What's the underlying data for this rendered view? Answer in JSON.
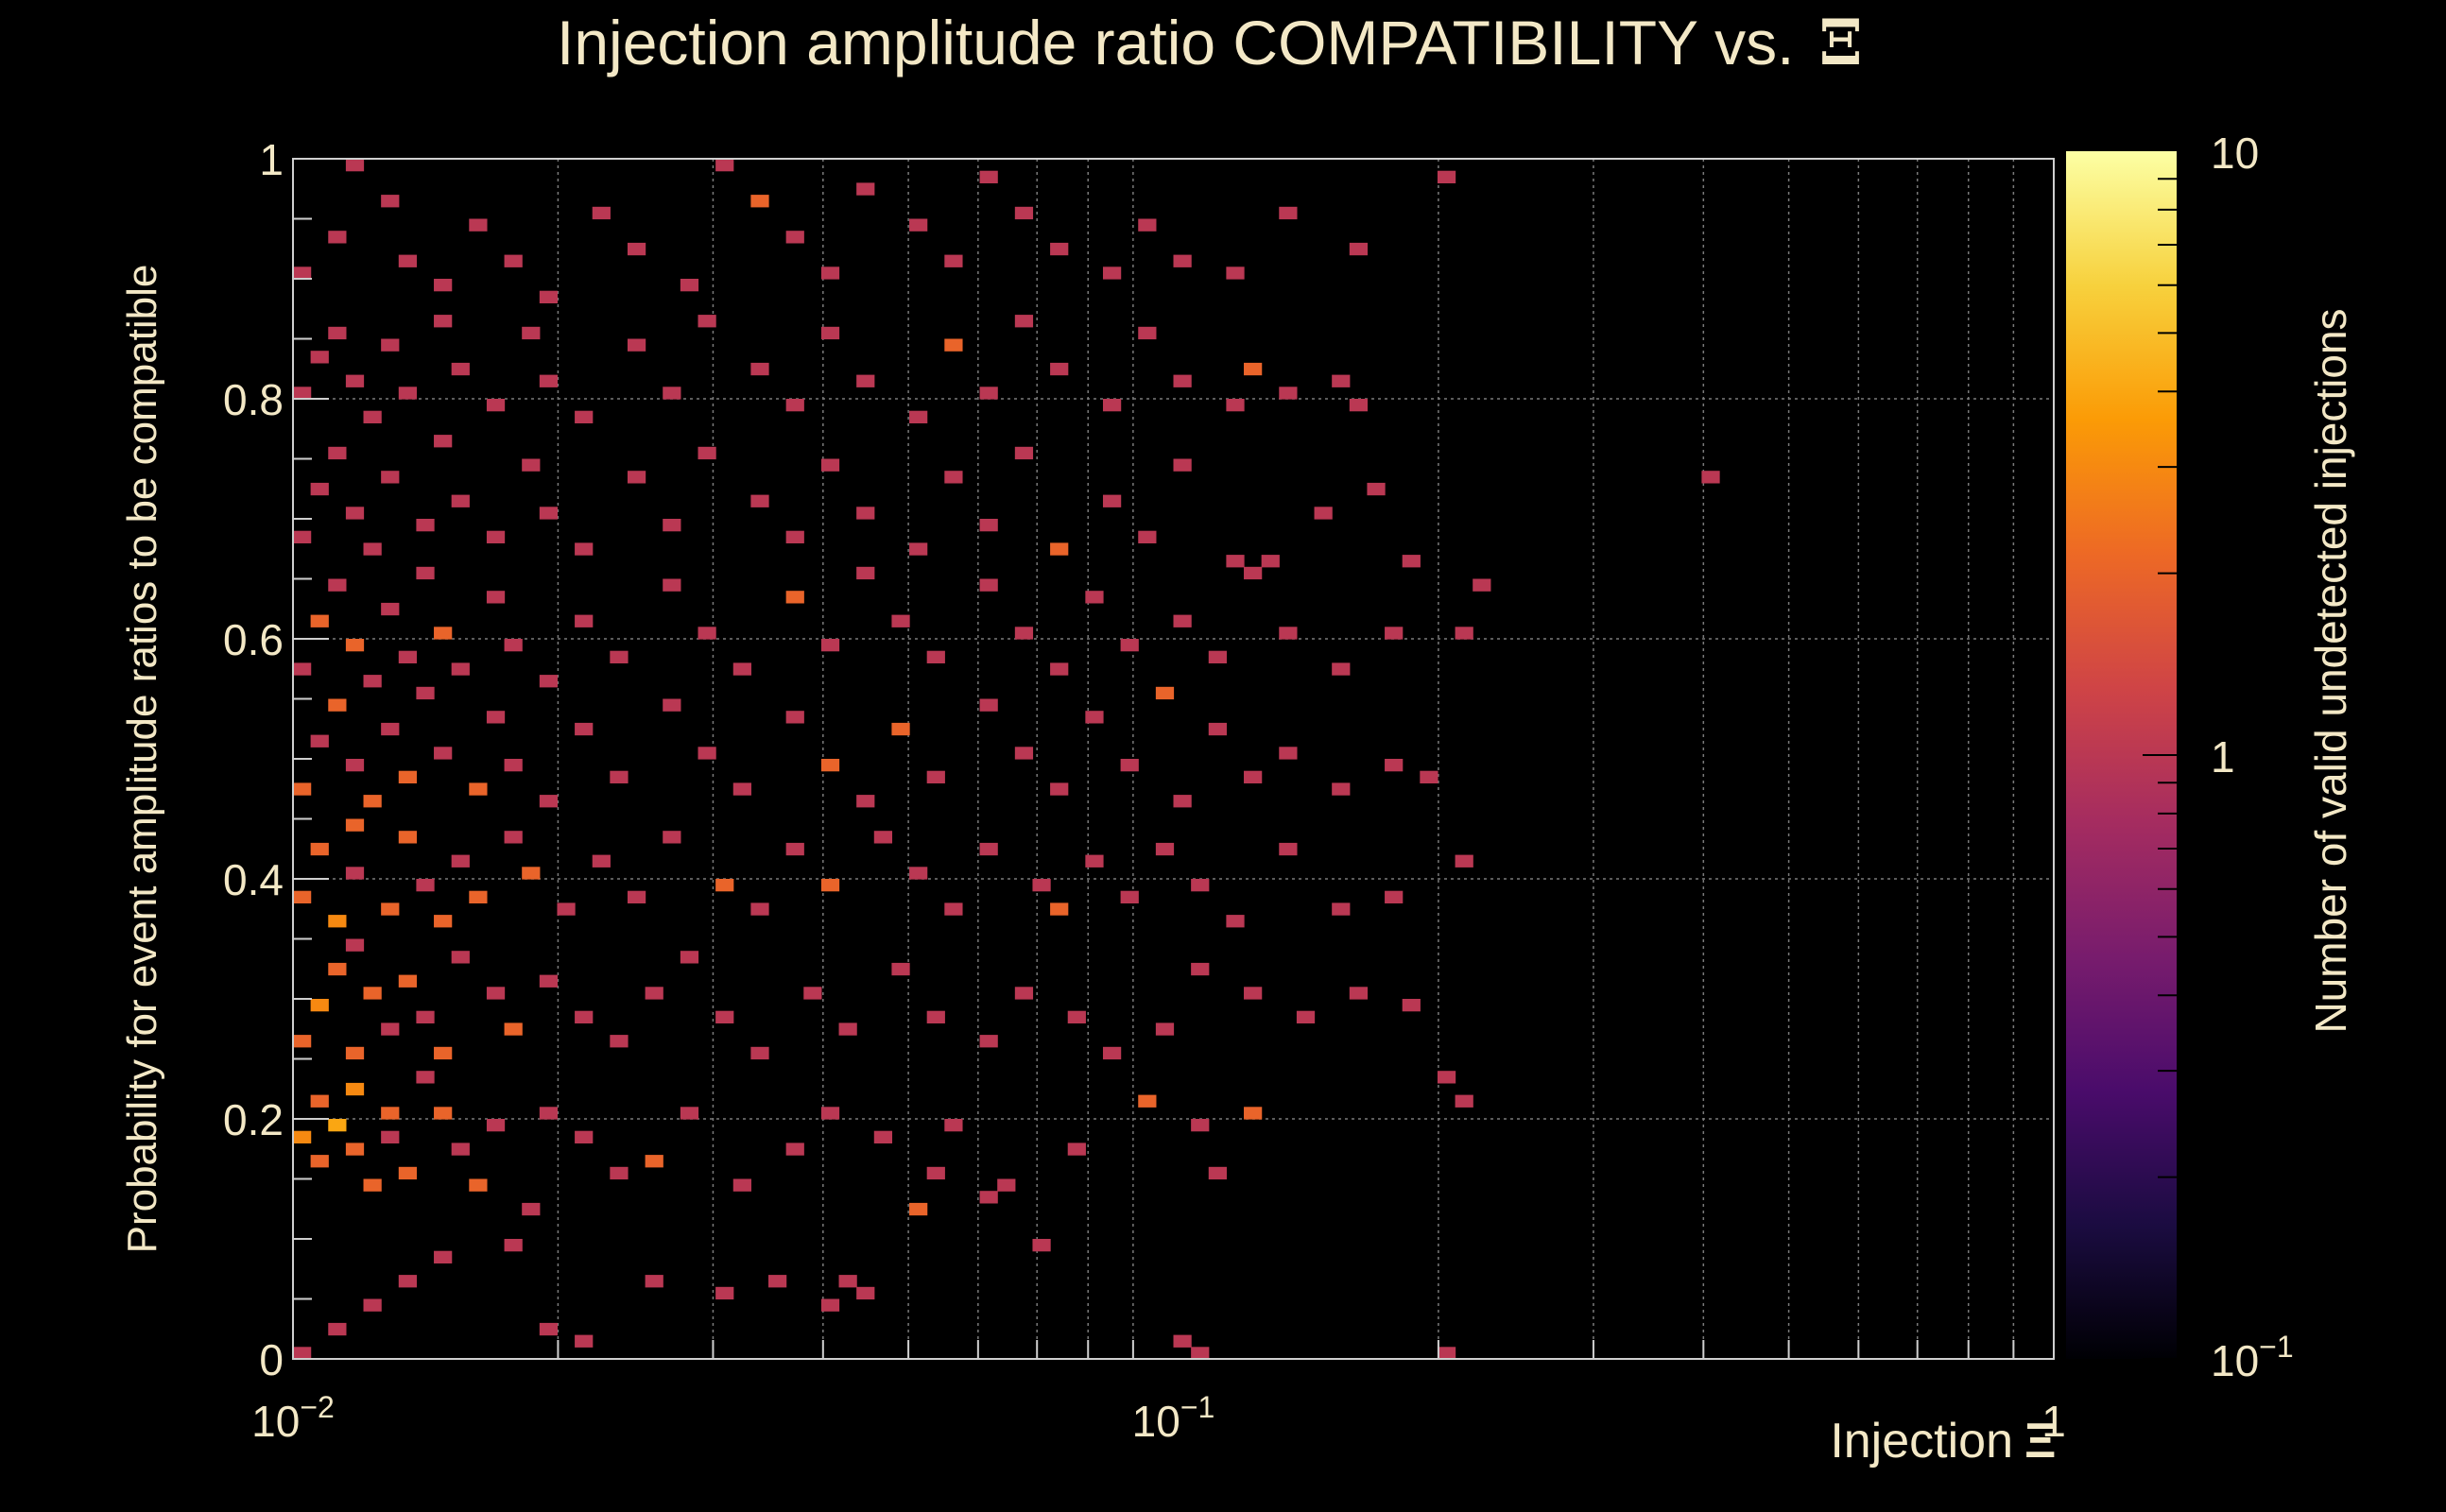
{
  "chart_data": {
    "type": "heatmap",
    "title": "Injection amplitude ratio COMPATIBILITY vs.",
    "title_symbol": "Ξ",
    "xlabel": "Injection",
    "xlabel_symbol": "Ξ",
    "ylabel": "Probability for event amplitude ratios to be compatible",
    "colorbar_label": "Number of valid undetected injections",
    "x_scale": "log",
    "xlim": [
      0.01,
      1
    ],
    "ylim": [
      0,
      1
    ],
    "z_scale": "log",
    "zlim": [
      0.1,
      10
    ],
    "grid": true,
    "x_ticks": [
      {
        "value": 0.01,
        "base": "10",
        "exp": "−2"
      },
      {
        "value": 0.1,
        "base": "10",
        "exp": "−1"
      },
      {
        "value": 1,
        "base": "1",
        "exp": ""
      }
    ],
    "y_ticks": [
      {
        "value": 0,
        "label": "0"
      },
      {
        "value": 0.2,
        "label": "0.2"
      },
      {
        "value": 0.4,
        "label": "0.4"
      },
      {
        "value": 0.6,
        "label": "0.6"
      },
      {
        "value": 0.8,
        "label": "0.8"
      },
      {
        "value": 1,
        "label": "1"
      }
    ],
    "z_ticks": [
      {
        "value": 0.1,
        "base": "10",
        "exp": "−1"
      },
      {
        "value": 1,
        "base": "1",
        "exp": ""
      },
      {
        "value": 10,
        "base": "10",
        "exp": ""
      }
    ],
    "n_x_bins": 100,
    "n_y_bins": 100,
    "colormap": [
      "#000004",
      "#1b0c41",
      "#4a0c6b",
      "#781c6d",
      "#a52c60",
      "#cf4446",
      "#ed6925",
      "#fb9b06",
      "#f7d13d",
      "#fcffa4"
    ],
    "points": [
      [
        0.0102,
        0.005,
        1
      ],
      [
        0.0112,
        0.025,
        1
      ],
      [
        0.0125,
        0.045,
        1
      ],
      [
        0.0135,
        0.065,
        1
      ],
      [
        0.0148,
        0.085,
        1
      ],
      [
        0.0175,
        0.095,
        1
      ],
      [
        0.0192,
        0.025,
        1
      ],
      [
        0.0215,
        0.015,
        1
      ],
      [
        0.0258,
        0.065,
        1
      ],
      [
        0.0305,
        0.055,
        1
      ],
      [
        0.0352,
        0.065,
        1
      ],
      [
        0.0412,
        0.045,
        1
      ],
      [
        0.0435,
        0.065,
        1
      ],
      [
        0.0455,
        0.055,
        1
      ],
      [
        0.0515,
        0.125,
        2
      ],
      [
        0.0612,
        0.135,
        1
      ],
      [
        0.0698,
        0.095,
        1
      ],
      [
        0.102,
        0.015,
        1
      ],
      [
        0.105,
        0.005,
        1
      ],
      [
        0.201,
        0.005,
        1
      ],
      [
        0.0103,
        0.185,
        3
      ],
      [
        0.0106,
        0.215,
        2
      ],
      [
        0.0109,
        0.165,
        2
      ],
      [
        0.0112,
        0.195,
        4
      ],
      [
        0.0116,
        0.175,
        2
      ],
      [
        0.0119,
        0.225,
        3
      ],
      [
        0.0123,
        0.145,
        2
      ],
      [
        0.0127,
        0.205,
        2
      ],
      [
        0.0131,
        0.185,
        1
      ],
      [
        0.0136,
        0.155,
        2
      ],
      [
        0.0141,
        0.235,
        1
      ],
      [
        0.0147,
        0.205,
        2
      ],
      [
        0.0155,
        0.175,
        1
      ],
      [
        0.0162,
        0.145,
        2
      ],
      [
        0.0171,
        0.195,
        1
      ],
      [
        0.0185,
        0.125,
        1
      ],
      [
        0.0198,
        0.205,
        1
      ],
      [
        0.0215,
        0.185,
        1
      ],
      [
        0.0235,
        0.155,
        1
      ],
      [
        0.0262,
        0.165,
        2
      ],
      [
        0.0288,
        0.205,
        1
      ],
      [
        0.0325,
        0.145,
        1
      ],
      [
        0.0365,
        0.175,
        1
      ],
      [
        0.0415,
        0.205,
        1
      ],
      [
        0.0465,
        0.185,
        1
      ],
      [
        0.0535,
        0.155,
        1
      ],
      [
        0.0575,
        0.195,
        1
      ],
      [
        0.0655,
        0.145,
        1
      ],
      [
        0.0785,
        0.175,
        1
      ],
      [
        0.0915,
        0.215,
        2
      ],
      [
        0.106,
        0.195,
        1
      ],
      [
        0.112,
        0.155,
        1
      ],
      [
        0.122,
        0.205,
        2
      ],
      [
        0.215,
        0.215,
        1
      ],
      [
        0.0104,
        0.265,
        2
      ],
      [
        0.0108,
        0.295,
        3
      ],
      [
        0.0111,
        0.325,
        2
      ],
      [
        0.0115,
        0.255,
        2
      ],
      [
        0.0119,
        0.345,
        1
      ],
      [
        0.0124,
        0.305,
        2
      ],
      [
        0.0129,
        0.275,
        1
      ],
      [
        0.0135,
        0.315,
        2
      ],
      [
        0.0142,
        0.285,
        1
      ],
      [
        0.0149,
        0.255,
        2
      ],
      [
        0.0158,
        0.335,
        1
      ],
      [
        0.0168,
        0.305,
        1
      ],
      [
        0.0179,
        0.275,
        2
      ],
      [
        0.0192,
        0.315,
        1
      ],
      [
        0.0212,
        0.285,
        1
      ],
      [
        0.0235,
        0.265,
        1
      ],
      [
        0.0258,
        0.305,
        1
      ],
      [
        0.0285,
        0.335,
        1
      ],
      [
        0.0315,
        0.285,
        1
      ],
      [
        0.0345,
        0.255,
        1
      ],
      [
        0.0385,
        0.305,
        1
      ],
      [
        0.0432,
        0.275,
        1
      ],
      [
        0.0485,
        0.325,
        1
      ],
      [
        0.0545,
        0.285,
        1
      ],
      [
        0.0612,
        0.265,
        1
      ],
      [
        0.0685,
        0.305,
        1
      ],
      [
        0.0765,
        0.285,
        1
      ],
      [
        0.0855,
        0.255,
        1
      ],
      [
        0.0955,
        0.275,
        1
      ],
      [
        0.108,
        0.325,
        1
      ],
      [
        0.121,
        0.305,
        1
      ],
      [
        0.142,
        0.285,
        1
      ],
      [
        0.165,
        0.305,
        1
      ],
      [
        0.185,
        0.295,
        1
      ],
      [
        0.202,
        0.235,
        1
      ],
      [
        0.0103,
        0.385,
        2
      ],
      [
        0.0107,
        0.425,
        2
      ],
      [
        0.0111,
        0.365,
        3
      ],
      [
        0.0115,
        0.445,
        2
      ],
      [
        0.012,
        0.405,
        1
      ],
      [
        0.0126,
        0.375,
        2
      ],
      [
        0.0132,
        0.435,
        2
      ],
      [
        0.0139,
        0.395,
        1
      ],
      [
        0.0146,
        0.365,
        2
      ],
      [
        0.0155,
        0.415,
        1
      ],
      [
        0.0165,
        0.385,
        2
      ],
      [
        0.0176,
        0.435,
        1
      ],
      [
        0.0188,
        0.405,
        2
      ],
      [
        0.0205,
        0.375,
        1
      ],
      [
        0.0225,
        0.415,
        1
      ],
      [
        0.0248,
        0.385,
        1
      ],
      [
        0.0275,
        0.435,
        1
      ],
      [
        0.0305,
        0.395,
        2
      ],
      [
        0.0338,
        0.375,
        1
      ],
      [
        0.0375,
        0.425,
        1
      ],
      [
        0.0415,
        0.395,
        2
      ],
      [
        0.0458,
        0.435,
        1
      ],
      [
        0.0505,
        0.405,
        1
      ],
      [
        0.0558,
        0.375,
        1
      ],
      [
        0.0625,
        0.425,
        1
      ],
      [
        0.0695,
        0.395,
        1
      ],
      [
        0.0755,
        0.375,
        2
      ],
      [
        0.0825,
        0.415,
        1
      ],
      [
        0.0905,
        0.385,
        1
      ],
      [
        0.0985,
        0.425,
        1
      ],
      [
        0.108,
        0.395,
        1
      ],
      [
        0.1195,
        0.365,
        1
      ],
      [
        0.135,
        0.425,
        1
      ],
      [
        0.152,
        0.375,
        1
      ],
      [
        0.178,
        0.385,
        1
      ],
      [
        0.218,
        0.415,
        1
      ],
      [
        0.0104,
        0.475,
        2
      ],
      [
        0.0108,
        0.515,
        1
      ],
      [
        0.0112,
        0.545,
        2
      ],
      [
        0.0117,
        0.495,
        1
      ],
      [
        0.0122,
        0.465,
        2
      ],
      [
        0.0128,
        0.525,
        1
      ],
      [
        0.0135,
        0.485,
        2
      ],
      [
        0.0142,
        0.555,
        1
      ],
      [
        0.015,
        0.505,
        1
      ],
      [
        0.0159,
        0.475,
        2
      ],
      [
        0.0169,
        0.535,
        1
      ],
      [
        0.0181,
        0.495,
        1
      ],
      [
        0.0195,
        0.465,
        1
      ],
      [
        0.0215,
        0.525,
        1
      ],
      [
        0.0238,
        0.485,
        1
      ],
      [
        0.0265,
        0.545,
        1
      ],
      [
        0.0295,
        0.505,
        1
      ],
      [
        0.0328,
        0.475,
        1
      ],
      [
        0.0365,
        0.535,
        1
      ],
      [
        0.0405,
        0.495,
        2
      ],
      [
        0.0448,
        0.465,
        1
      ],
      [
        0.0495,
        0.525,
        2
      ],
      [
        0.0548,
        0.485,
        1
      ],
      [
        0.0605,
        0.545,
        1
      ],
      [
        0.0672,
        0.505,
        1
      ],
      [
        0.0745,
        0.475,
        1
      ],
      [
        0.0825,
        0.535,
        1
      ],
      [
        0.0912,
        0.495,
        1
      ],
      [
        0.101,
        0.465,
        1
      ],
      [
        0.112,
        0.525,
        1
      ],
      [
        0.125,
        0.485,
        1
      ],
      [
        0.138,
        0.505,
        1
      ],
      [
        0.156,
        0.475,
        1
      ],
      [
        0.178,
        0.495,
        1
      ],
      [
        0.195,
        0.485,
        1
      ],
      [
        0.0103,
        0.575,
        1
      ],
      [
        0.0107,
        0.615,
        2
      ],
      [
        0.0111,
        0.645,
        1
      ],
      [
        0.0116,
        0.595,
        2
      ],
      [
        0.0121,
        0.565,
        1
      ],
      [
        0.0127,
        0.625,
        1
      ],
      [
        0.0134,
        0.585,
        1
      ],
      [
        0.0141,
        0.655,
        1
      ],
      [
        0.0149,
        0.605,
        2
      ],
      [
        0.0158,
        0.575,
        1
      ],
      [
        0.0168,
        0.635,
        1
      ],
      [
        0.018,
        0.595,
        1
      ],
      [
        0.0195,
        0.565,
        1
      ],
      [
        0.0215,
        0.615,
        1
      ],
      [
        0.0238,
        0.585,
        1
      ],
      [
        0.0265,
        0.645,
        1
      ],
      [
        0.0295,
        0.605,
        1
      ],
      [
        0.0328,
        0.575,
        1
      ],
      [
        0.0365,
        0.635,
        2
      ],
      [
        0.0405,
        0.595,
        1
      ],
      [
        0.0448,
        0.655,
        1
      ],
      [
        0.0495,
        0.615,
        1
      ],
      [
        0.0548,
        0.585,
        1
      ],
      [
        0.0605,
        0.645,
        1
      ],
      [
        0.0672,
        0.605,
        1
      ],
      [
        0.0745,
        0.575,
        1
      ],
      [
        0.0825,
        0.635,
        1
      ],
      [
        0.0912,
        0.595,
        1
      ],
      [
        0.0955,
        0.555,
        2
      ],
      [
        0.101,
        0.615,
        1
      ],
      [
        0.112,
        0.585,
        1
      ],
      [
        0.125,
        0.655,
        1
      ],
      [
        0.138,
        0.605,
        1
      ],
      [
        0.156,
        0.575,
        1
      ],
      [
        0.178,
        0.605,
        1
      ],
      [
        0.212,
        0.605,
        1
      ],
      [
        0.222,
        0.645,
        1
      ],
      [
        0.0104,
        0.685,
        1
      ],
      [
        0.0108,
        0.725,
        1
      ],
      [
        0.0113,
        0.755,
        1
      ],
      [
        0.0118,
        0.705,
        1
      ],
      [
        0.0124,
        0.675,
        1
      ],
      [
        0.0131,
        0.735,
        1
      ],
      [
        0.0139,
        0.695,
        1
      ],
      [
        0.0148,
        0.765,
        1
      ],
      [
        0.0158,
        0.715,
        1
      ],
      [
        0.017,
        0.685,
        1
      ],
      [
        0.0183,
        0.745,
        1
      ],
      [
        0.0198,
        0.705,
        1
      ],
      [
        0.0218,
        0.675,
        1
      ],
      [
        0.0242,
        0.735,
        1
      ],
      [
        0.0268,
        0.695,
        1
      ],
      [
        0.0298,
        0.755,
        1
      ],
      [
        0.0332,
        0.715,
        1
      ],
      [
        0.0368,
        0.685,
        1
      ],
      [
        0.0408,
        0.745,
        1
      ],
      [
        0.0452,
        0.705,
        1
      ],
      [
        0.0502,
        0.675,
        1
      ],
      [
        0.0558,
        0.735,
        1
      ],
      [
        0.0618,
        0.695,
        1
      ],
      [
        0.0685,
        0.755,
        1
      ],
      [
        0.0755,
        0.675,
        2
      ],
      [
        0.0835,
        0.715,
        1
      ],
      [
        0.0925,
        0.685,
        1
      ],
      [
        0.102,
        0.745,
        1
      ],
      [
        0.115,
        0.665,
        1
      ],
      [
        0.128,
        0.665,
        1
      ],
      [
        0.145,
        0.705,
        1
      ],
      [
        0.168,
        0.725,
        1
      ],
      [
        0.188,
        0.665,
        1
      ],
      [
        0.405,
        0.735,
        1
      ],
      [
        0.0103,
        0.805,
        1
      ],
      [
        0.0107,
        0.835,
        1
      ],
      [
        0.0112,
        0.855,
        1
      ],
      [
        0.0117,
        0.815,
        1
      ],
      [
        0.0123,
        0.785,
        1
      ],
      [
        0.013,
        0.845,
        1
      ],
      [
        0.0138,
        0.805,
        1
      ],
      [
        0.0147,
        0.865,
        1
      ],
      [
        0.0157,
        0.825,
        1
      ],
      [
        0.0169,
        0.795,
        1
      ],
      [
        0.0182,
        0.855,
        1
      ],
      [
        0.0198,
        0.815,
        1
      ],
      [
        0.0218,
        0.785,
        1
      ],
      [
        0.0242,
        0.845,
        1
      ],
      [
        0.0268,
        0.805,
        1
      ],
      [
        0.0298,
        0.865,
        1
      ],
      [
        0.0332,
        0.825,
        1
      ],
      [
        0.0368,
        0.795,
        1
      ],
      [
        0.0408,
        0.855,
        1
      ],
      [
        0.0452,
        0.815,
        1
      ],
      [
        0.0502,
        0.785,
        1
      ],
      [
        0.0558,
        0.845,
        2
      ],
      [
        0.0618,
        0.805,
        1
      ],
      [
        0.0685,
        0.865,
        1
      ],
      [
        0.0755,
        0.825,
        1
      ],
      [
        0.0835,
        0.795,
        1
      ],
      [
        0.0925,
        0.855,
        1
      ],
      [
        0.102,
        0.815,
        1
      ],
      [
        0.115,
        0.795,
        1
      ],
      [
        0.122,
        0.825,
        2
      ],
      [
        0.135,
        0.805,
        1
      ],
      [
        0.155,
        0.815,
        1
      ],
      [
        0.165,
        0.795,
        1
      ],
      [
        0.0104,
        0.905,
        1
      ],
      [
        0.0111,
        0.935,
        1
      ],
      [
        0.0119,
        0.995,
        1
      ],
      [
        0.0128,
        0.965,
        1
      ],
      [
        0.0138,
        0.915,
        1
      ],
      [
        0.0149,
        0.895,
        1
      ],
      [
        0.0162,
        0.945,
        1
      ],
      [
        0.0178,
        0.915,
        1
      ],
      [
        0.0198,
        0.885,
        1
      ],
      [
        0.0222,
        0.955,
        1
      ],
      [
        0.0248,
        0.925,
        1
      ],
      [
        0.0278,
        0.895,
        1
      ],
      [
        0.0302,
        0.995,
        1
      ],
      [
        0.0332,
        0.965,
        2
      ],
      [
        0.0368,
        0.935,
        1
      ],
      [
        0.0408,
        0.905,
        1
      ],
      [
        0.0452,
        0.975,
        1
      ],
      [
        0.0502,
        0.945,
        1
      ],
      [
        0.0558,
        0.915,
        1
      ],
      [
        0.0618,
        0.985,
        1
      ],
      [
        0.0685,
        0.955,
        1
      ],
      [
        0.0755,
        0.925,
        1
      ],
      [
        0.0835,
        0.905,
        1
      ],
      [
        0.0925,
        0.945,
        1
      ],
      [
        0.102,
        0.915,
        1
      ],
      [
        0.115,
        0.905,
        1
      ],
      [
        0.135,
        0.955,
        1
      ],
      [
        0.165,
        0.925,
        1
      ],
      [
        0.208,
        0.985,
        1
      ]
    ]
  }
}
